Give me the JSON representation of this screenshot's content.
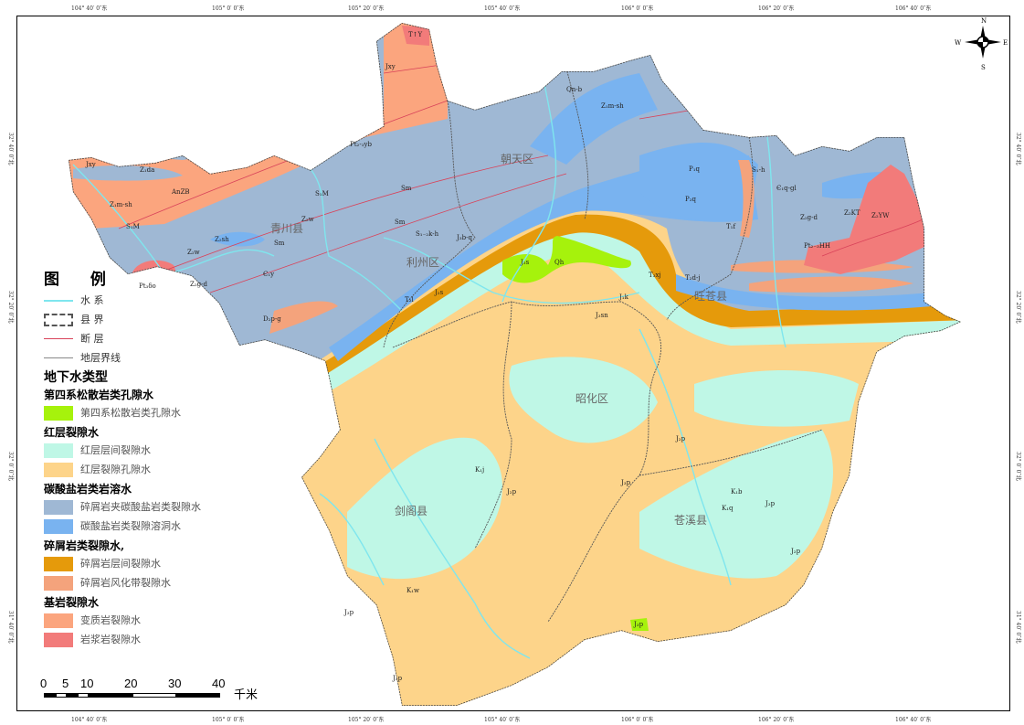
{
  "coords": {
    "top": [
      "104° 40′ 0″东",
      "105° 0′ 0″东",
      "105° 20′ 0″东",
      "105° 40′ 0″东",
      "106° 0′ 0″东",
      "106° 20′ 0″东",
      "106° 40′ 0″东"
    ],
    "bottom": [
      "104° 40′ 0″东",
      "105° 0′ 0″东",
      "105° 20′ 0″东",
      "105° 40′ 0″东",
      "106° 0′ 0″东",
      "106° 20′ 0″东",
      "106° 40′ 0″东"
    ],
    "left": [
      "32° 40′ 0″北",
      "32° 20′ 0″北",
      "32° 0′ 0″北",
      "31° 40′ 0″北"
    ],
    "right": [
      "32° 40′ 0″北",
      "32° 20′ 0″北",
      "32° 0′ 0″北",
      "31° 40′ 0″北"
    ]
  },
  "compass": {
    "n": "N",
    "s": "S",
    "e": "E",
    "w": "W"
  },
  "districts": [
    "青川县",
    "朝天区",
    "利州区",
    "旺苍县",
    "昭化区",
    "剑阁县",
    "苍溪县"
  ],
  "formations": [
    "T↑Y",
    "Jxy",
    "Pt₂-₃yb",
    "Jxy",
    "Z₁da",
    "AnZB",
    "Z₁m-sh",
    "S₁M",
    "S₁M",
    "Z₂w",
    "Z₂sh",
    "Sm",
    "Z₂w",
    "Z₂g-d",
    "Pt₃δo",
    "Є₁y",
    "D₂p-g",
    "Sm",
    "Sm",
    "S₁₋₂k-h",
    "J₃b-q",
    "T₂l",
    "J₃s",
    "J₂s",
    "Qh",
    "Qn-b",
    "Z₁m-sh",
    "P₁q",
    "P₂q",
    "S₁-h",
    "Є₁q-gl",
    "Z₂g-d",
    "Z₂KT",
    "Z₂YW",
    "Pt₂₋₃HH",
    "T₁f",
    "T₃xj",
    "T₂d-j",
    "J₃sn",
    "J₁k",
    "J₂p",
    "K₁j",
    "K₁b",
    "K₁q",
    "K₁w",
    "J₂p",
    "J₃p",
    "J₃p",
    "J₂p",
    "J₃p",
    "J₃p",
    "J₃p"
  ],
  "legend": {
    "title": "图  例",
    "lines": [
      {
        "label": "水  系",
        "color": "#7fe6ee"
      },
      {
        "label": "县  界",
        "color": "#555555"
      },
      {
        "label": "断  层",
        "color": "#d9435a"
      },
      {
        "label": "地层界线",
        "color": "#888888"
      }
    ],
    "groundwater_title": "地下水类型",
    "groups": [
      {
        "title": "第四系松散岩类孔隙水",
        "items": [
          {
            "label": "第四系松散岩类孔隙水",
            "color": "#a6f20c"
          }
        ]
      },
      {
        "title": "红层裂隙水",
        "items": [
          {
            "label": "红层层间裂隙水",
            "color": "#bff7e6"
          },
          {
            "label": "红层裂隙孔隙水",
            "color": "#fdd48a"
          }
        ]
      },
      {
        "title": "碳酸盐岩类岩溶水",
        "items": [
          {
            "label": "碎屑岩夹碳酸盐岩类裂隙水",
            "color": "#9fb8d4"
          },
          {
            "label": "碳酸盐岩类裂隙溶洞水",
            "color": "#79b3f0"
          }
        ]
      },
      {
        "title": "碎屑岩类裂隙水,",
        "items": [
          {
            "label": "碎屑岩层间裂隙水",
            "color": "#e59a0b"
          },
          {
            "label": "碎屑岩风化带裂隙水",
            "color": "#f4a37c"
          }
        ]
      },
      {
        "title": "基岩裂隙水",
        "items": [
          {
            "label": "变质岩裂隙水",
            "color": "#fba57e"
          },
          {
            "label": "岩浆岩裂隙水",
            "color": "#f27b7a"
          }
        ]
      }
    ]
  },
  "scale": {
    "ticks": [
      "0",
      "5",
      "10",
      "20",
      "30",
      "40"
    ],
    "unit": "千米"
  }
}
